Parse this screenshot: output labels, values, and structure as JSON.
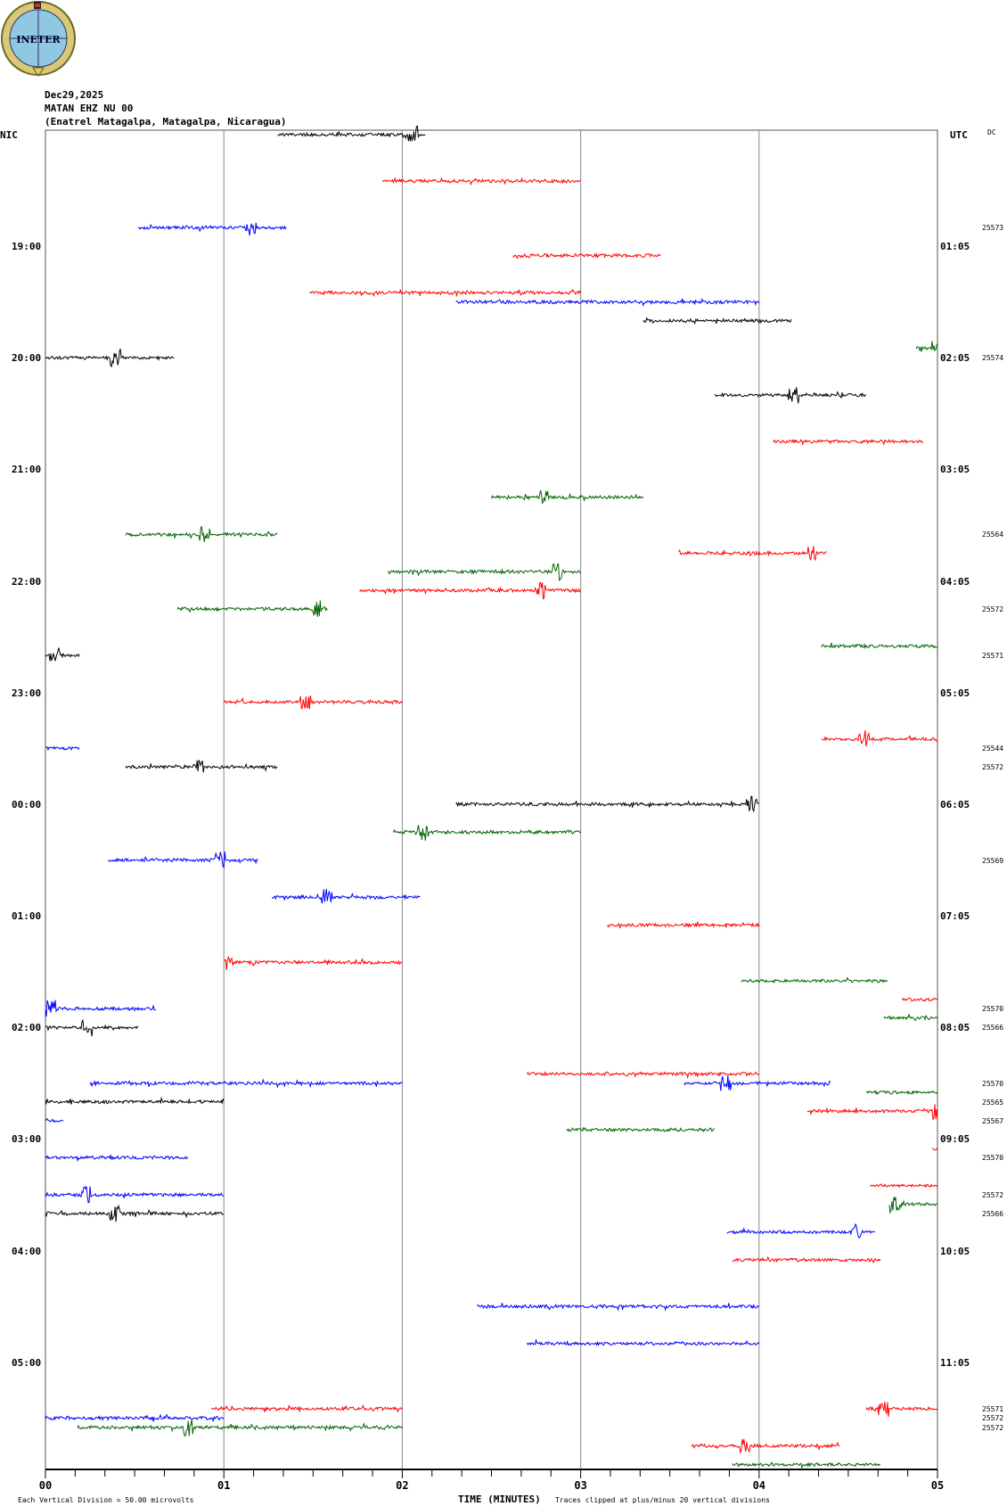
{
  "header": {
    "date": "Dec29,2025",
    "station": "MATAN EHZ NU 00",
    "location": "(Enatrel Matagalpa, Matagalpa, Nicaragua)",
    "left_tz": "NIC",
    "right_tz": "UTC",
    "dc_label": "DC",
    "logo_text": "INETER"
  },
  "footer": {
    "scale": "Each Vertical Division =   50.00 microvolts",
    "clip": "Traces clipped at plus/minus 20 vertical divisions"
  },
  "chart_data": {
    "type": "line",
    "title": "MATAN EHZ NU 00 helicorder Dec29,2025",
    "xlabel": "TIME (MINUTES)",
    "x_ticks": [
      "00",
      "01",
      "02",
      "03",
      "04",
      "05"
    ],
    "xlim": [
      0,
      5
    ],
    "rows_per_hour": 12,
    "colors": [
      "#000000",
      "#ff0000",
      "#0000ff",
      "#006400"
    ],
    "left_hours": [
      {
        "row": 12,
        "label": "19:00"
      },
      {
        "row": 24,
        "label": "20:00"
      },
      {
        "row": 36,
        "label": "21:00"
      },
      {
        "row": 48,
        "label": "22:00"
      },
      {
        "row": 60,
        "label": "23:00"
      },
      {
        "row": 72,
        "label": "00:00"
      },
      {
        "row": 84,
        "label": "01:00"
      },
      {
        "row": 96,
        "label": "02:00"
      },
      {
        "row": 108,
        "label": "03:00"
      },
      {
        "row": 120,
        "label": "04:00"
      },
      {
        "row": 132,
        "label": "05:00"
      }
    ],
    "right_hours": [
      {
        "row": 12,
        "label": "01:05"
      },
      {
        "row": 24,
        "label": "02:05"
      },
      {
        "row": 36,
        "label": "03:05"
      },
      {
        "row": 48,
        "label": "04:05"
      },
      {
        "row": 60,
        "label": "05:05"
      },
      {
        "row": 72,
        "label": "06:05"
      },
      {
        "row": 84,
        "label": "07:05"
      },
      {
        "row": 96,
        "label": "08:05"
      },
      {
        "row": 108,
        "label": "09:05"
      },
      {
        "row": 120,
        "label": "10:05"
      },
      {
        "row": 132,
        "label": "11:05"
      }
    ],
    "dc_values": [
      {
        "row": 10,
        "value": "25573"
      },
      {
        "row": 24,
        "value": "25574"
      },
      {
        "row": 43,
        "value": "25564"
      },
      {
        "row": 51,
        "value": "25572"
      },
      {
        "row": 56,
        "value": "25571"
      },
      {
        "row": 66,
        "value": "25544"
      },
      {
        "row": 68,
        "value": "25572"
      },
      {
        "row": 78,
        "value": "25569"
      },
      {
        "row": 94,
        "value": "25570"
      },
      {
        "row": 96,
        "value": "25566"
      },
      {
        "row": 102,
        "value": "25570"
      },
      {
        "row": 104,
        "value": "25565"
      },
      {
        "row": 106,
        "value": "25567"
      },
      {
        "row": 110,
        "value": "25570"
      },
      {
        "row": 114,
        "value": "25572"
      },
      {
        "row": 116,
        "value": "25566"
      },
      {
        "row": 137,
        "value": "25571"
      },
      {
        "row": 138,
        "value": "25572"
      },
      {
        "row": 139,
        "value": "25572"
      }
    ],
    "traces": [
      [
        0,
        1.3,
        2.13
      ],
      [
        5,
        1.89,
        3.0
      ],
      [
        10,
        0.52,
        1.35
      ],
      [
        13,
        2.62,
        3.45
      ],
      [
        17,
        1.48,
        3.0
      ],
      [
        18,
        2.3,
        4.0
      ],
      [
        20,
        3.35,
        4.18
      ],
      [
        23,
        4.88,
        5.0
      ],
      [
        24,
        0,
        0.72
      ],
      [
        28,
        3.75,
        4.6
      ],
      [
        33,
        4.08,
        4.92
      ],
      [
        39,
        2.5,
        3.35
      ],
      [
        43,
        0.45,
        1.3
      ],
      [
        45,
        3.55,
        4.38
      ],
      [
        47,
        1.92,
        3.0
      ],
      [
        49,
        1.76,
        3.0
      ],
      [
        51,
        0.74,
        1.58
      ],
      [
        55,
        4.35,
        5.0
      ],
      [
        56,
        0,
        0.19
      ],
      [
        61,
        1.0,
        2.0
      ],
      [
        65,
        4.35,
        5.0
      ],
      [
        66,
        0,
        0.19
      ],
      [
        68,
        0.45,
        1.3
      ],
      [
        72,
        2.3,
        4.0
      ],
      [
        75,
        1.95,
        3.0
      ],
      [
        78,
        0.35,
        1.19
      ],
      [
        82,
        1.27,
        2.1
      ],
      [
        85,
        3.15,
        4.0
      ],
      [
        89,
        1.0,
        2.0
      ],
      [
        91,
        3.9,
        4.72
      ],
      [
        93,
        4.8,
        5.0
      ],
      [
        94,
        0,
        0.62
      ],
      [
        95,
        4.7,
        5.0
      ],
      [
        96,
        0,
        0.52
      ],
      [
        101,
        2.7,
        4.0
      ],
      [
        102,
        0.25,
        2.0
      ],
      [
        102,
        3.58,
        4.4
      ],
      [
        103,
        4.6,
        5.0
      ],
      [
        104,
        0,
        1.0
      ],
      [
        105,
        4.27,
        5.0
      ],
      [
        106,
        0,
        0.1
      ],
      [
        107,
        2.92,
        3.75
      ],
      [
        109,
        4.97,
        5.0
      ],
      [
        110,
        0,
        0.8
      ],
      [
        113,
        4.62,
        5.0
      ],
      [
        114,
        0,
        1.0
      ],
      [
        115,
        4.73,
        5.0
      ],
      [
        116,
        0,
        1.0
      ],
      [
        118,
        3.82,
        4.65
      ],
      [
        121,
        3.85,
        4.68
      ],
      [
        126,
        2.42,
        4.0
      ],
      [
        130,
        2.7,
        4.0
      ],
      [
        137,
        0.93,
        2.0
      ],
      [
        137,
        4.6,
        5.0
      ],
      [
        138,
        0,
        1.0
      ],
      [
        139,
        0.18,
        2.0
      ],
      [
        141,
        3.62,
        4.45
      ],
      [
        143,
        3.85,
        4.68
      ]
    ]
  }
}
